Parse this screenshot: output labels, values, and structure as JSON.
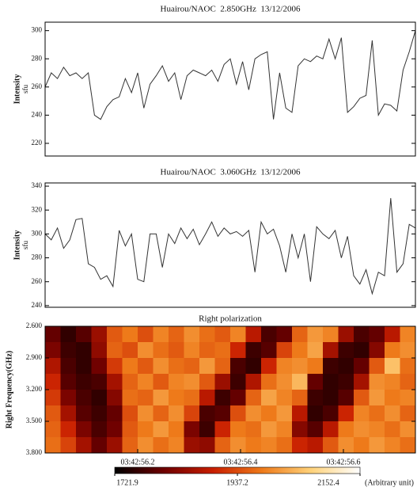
{
  "chart_data": [
    {
      "type": "line",
      "title": "Huairou/NAOC  2.850GHz  13/12/2006",
      "y_label": "Intensity",
      "y_unit": "sfu",
      "color": "#333333",
      "x": [
        56.02,
        56.032,
        56.044,
        56.056,
        56.068,
        56.08,
        56.092,
        56.104,
        56.116,
        56.128,
        56.14,
        56.152,
        56.164,
        56.176,
        56.188,
        56.2,
        56.212,
        56.224,
        56.236,
        56.248,
        56.26,
        56.272,
        56.284,
        56.296,
        56.308,
        56.32,
        56.332,
        56.344,
        56.356,
        56.368,
        56.38,
        56.392,
        56.404,
        56.416,
        56.428,
        56.44,
        56.452,
        56.464,
        56.476,
        56.488,
        56.5,
        56.512,
        56.524,
        56.536,
        56.548,
        56.56,
        56.572,
        56.584,
        56.596,
        56.608,
        56.62,
        56.632,
        56.644,
        56.656,
        56.668,
        56.68,
        56.692,
        56.704,
        56.716,
        56.728,
        56.74
      ],
      "values": [
        260,
        270,
        266,
        274,
        268,
        270,
        266,
        270,
        240,
        237,
        246,
        251,
        253,
        266,
        256,
        270,
        245,
        262,
        268,
        275,
        264,
        270,
        251,
        268,
        272,
        270,
        268,
        272,
        264,
        276,
        280,
        262,
        278,
        258,
        280,
        283,
        285,
        237,
        270,
        245,
        242,
        275,
        280,
        278,
        282,
        280,
        294,
        280,
        295,
        242,
        246,
        252,
        254,
        293,
        240,
        248,
        247,
        243,
        272,
        285,
        300
      ],
      "xlim": [
        56.02,
        56.74
      ],
      "ylim": [
        211,
        306
      ],
      "yticks": [
        220,
        240,
        260,
        280,
        300
      ]
    },
    {
      "type": "line",
      "title": "Huairou/NAOC  3.060GHz  13/12/2006",
      "y_label": "Intensity",
      "y_unit": "sfu",
      "color": "#333333",
      "x": [
        56.02,
        56.032,
        56.044,
        56.056,
        56.068,
        56.08,
        56.092,
        56.104,
        56.116,
        56.128,
        56.14,
        56.152,
        56.164,
        56.176,
        56.188,
        56.2,
        56.212,
        56.224,
        56.236,
        56.248,
        56.26,
        56.272,
        56.284,
        56.296,
        56.308,
        56.32,
        56.332,
        56.344,
        56.356,
        56.368,
        56.38,
        56.392,
        56.404,
        56.416,
        56.428,
        56.44,
        56.452,
        56.464,
        56.476,
        56.488,
        56.5,
        56.512,
        56.524,
        56.536,
        56.548,
        56.56,
        56.572,
        56.584,
        56.596,
        56.608,
        56.62,
        56.632,
        56.644,
        56.656,
        56.668,
        56.68,
        56.692,
        56.704,
        56.716,
        56.728,
        56.74
      ],
      "values": [
        300,
        295,
        305,
        288,
        295,
        312,
        313,
        275,
        272,
        262,
        265,
        256,
        303,
        290,
        300,
        262,
        260,
        300,
        300,
        272,
        300,
        292,
        305,
        296,
        304,
        291,
        300,
        310,
        298,
        305,
        300,
        302,
        298,
        303,
        268,
        310,
        300,
        304,
        290,
        268,
        300,
        280,
        300,
        260,
        306,
        300,
        296,
        303,
        280,
        298,
        265,
        258,
        270,
        250,
        268,
        265,
        330,
        268,
        275,
        308,
        305
      ],
      "xlim": [
        56.02,
        56.74
      ],
      "ylim": [
        238.6,
        342.7
      ],
      "yticks": [
        240,
        260,
        280,
        300,
        320,
        340
      ]
    },
    {
      "type": "heatmap",
      "title": "Right polarization",
      "y_label": "Right Frequency(GHz)",
      "x": [
        56.035,
        56.065,
        56.095,
        56.125,
        56.155,
        56.185,
        56.215,
        56.245,
        56.275,
        56.305,
        56.335,
        56.365,
        56.395,
        56.425,
        56.455,
        56.485,
        56.515,
        56.545,
        56.575,
        56.605,
        56.635,
        56.665,
        56.695,
        56.725
      ],
      "y": [
        2.675,
        2.825,
        2.975,
        3.125,
        3.275,
        3.425,
        3.575,
        3.725
      ],
      "z": [
        [
          1800,
          1760,
          1790,
          1850,
          1950,
          1980,
          1940,
          1990,
          1960,
          2000,
          1970,
          1950,
          1990,
          1880,
          1780,
          1800,
          1960,
          2010,
          1990,
          1850,
          1780,
          1800,
          1880,
          1990
        ],
        [
          1820,
          1770,
          1760,
          1840,
          1960,
          1940,
          2000,
          1970,
          1950,
          1990,
          1960,
          1970,
          1900,
          1770,
          1790,
          1930,
          1980,
          2020,
          1860,
          1770,
          1760,
          1830,
          1980,
          2000
        ],
        [
          1870,
          1780,
          1760,
          1810,
          1920,
          1980,
          1950,
          2000,
          1970,
          1960,
          2010,
          1960,
          1780,
          1760,
          1900,
          1990,
          2000,
          1980,
          1770,
          1760,
          1800,
          1950,
          2050,
          1970
        ],
        [
          1900,
          1790,
          1770,
          1780,
          1860,
          1960,
          1990,
          1950,
          1990,
          2000,
          1950,
          1850,
          1770,
          1870,
          1970,
          2000,
          2040,
          1800,
          1760,
          1770,
          1860,
          2000,
          1990,
          1960
        ],
        [
          1920,
          1820,
          1780,
          1760,
          1830,
          1970,
          1960,
          2010,
          1980,
          1970,
          1880,
          1770,
          1800,
          1960,
          2020,
          1990,
          1960,
          1770,
          1760,
          1790,
          1950,
          2010,
          1980,
          1990
        ],
        [
          1950,
          1860,
          1790,
          1770,
          1800,
          1940,
          2000,
          1960,
          2000,
          1930,
          1780,
          1790,
          1940,
          2000,
          1980,
          2010,
          1880,
          1760,
          1780,
          1900,
          1990,
          1970,
          2000,
          1960
        ],
        [
          1960,
          1900,
          1820,
          1780,
          1810,
          1950,
          1980,
          2010,
          1980,
          1820,
          1770,
          1900,
          1980,
          1970,
          2010,
          1990,
          1830,
          1790,
          1880,
          1980,
          2000,
          1990,
          1970,
          2000
        ],
        [
          1970,
          1930,
          1860,
          1800,
          1850,
          1960,
          2000,
          1970,
          1990,
          1850,
          1840,
          1960,
          2000,
          1980,
          1990,
          1970,
          1900,
          1880,
          1950,
          2000,
          1980,
          2010,
          1990,
          1970
        ]
      ],
      "xlim": [
        56.02,
        56.74
      ],
      "ylim": [
        3.8,
        2.6
      ],
      "xticks": [
        {
          "value": 56.2,
          "label": "03:42:56.2"
        },
        {
          "value": 56.4,
          "label": "03:42:56.4"
        },
        {
          "value": 56.6,
          "label": "03:42:56.6"
        }
      ],
      "yticks": [
        {
          "value": 2.6,
          "label": "2.600"
        },
        {
          "value": 2.9,
          "label": "2.900"
        },
        {
          "value": 3.2,
          "label": "3.200"
        },
        {
          "value": 3.5,
          "label": "3.500"
        },
        {
          "value": 3.8,
          "label": "3.800"
        }
      ],
      "colors": [
        "#000000",
        "#6e0000",
        "#c81e00",
        "#ee7a1a",
        "#ffd27a",
        "#ffffff"
      ],
      "colorbar": {
        "lim": [
          1721.9,
          2152.4
        ],
        "ticks": [
          1721.9,
          1937.2,
          2152.4
        ],
        "label": "(Arbitrary unit)"
      }
    }
  ]
}
